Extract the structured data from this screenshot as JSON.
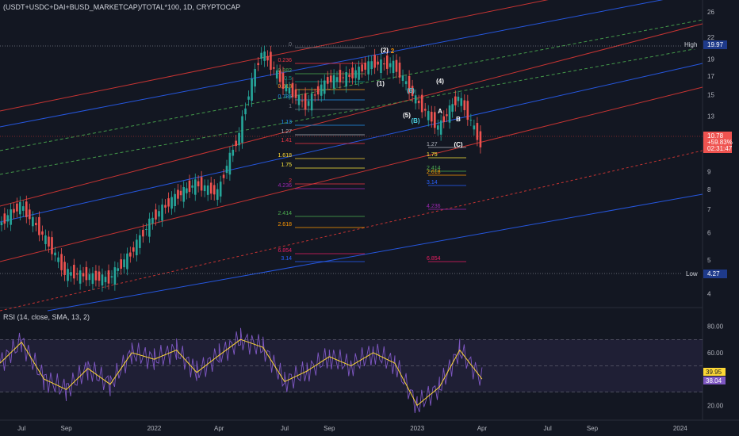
{
  "header": {
    "symbol_title": "(USDT+USDC+DAI+BUSD_MARKETCAP)/TOTAL*100, 1D, CRYPTOCAP"
  },
  "rsi_header": "RSI (14, close, SMA, 13, 2)",
  "price_axis": {
    "ticks": [
      "26",
      "22",
      "19",
      "17",
      "15",
      "13",
      "10",
      "9",
      "8",
      "7",
      "6",
      "5",
      "4"
    ],
    "high_label": "High",
    "high_value": "19.97",
    "low_label": "Low",
    "low_value": "4.27",
    "current_price": "10.78",
    "current_change": "+59.83%",
    "countdown": "02:31:47"
  },
  "rsi_axis": {
    "ticks": [
      "80.00",
      "60.00",
      "40.00",
      "20.00"
    ],
    "rsi_value": "39.95",
    "rsi_ma_value": "38.04"
  },
  "time_axis": [
    "Jul",
    "Sep",
    "2022",
    "Apr",
    "Jul",
    "Sep",
    "2023",
    "Apr",
    "Jul",
    "Sep",
    "2024"
  ],
  "fib_labels_primary": [
    "0",
    "0.236",
    "0.382",
    "0.5",
    "0.618",
    "0.786",
    "1",
    "1.13",
    "1.27",
    "1.41",
    "1.618",
    "1.75",
    "2",
    "2.414",
    "2.618",
    "3.14",
    "4.236",
    "6.854"
  ],
  "fib_labels_secondary": [
    "1.27",
    "1.75",
    "2.414",
    "2.618",
    "3.14",
    "4.236",
    "6.854"
  ],
  "wave_labels": [
    "(1)",
    "(2)",
    "2",
    "(4)",
    "(5)",
    "(6)",
    "(B)",
    "A",
    "B",
    "(C)"
  ],
  "colors": {
    "background": "#131722",
    "candle_up": "#26a69a",
    "candle_down": "#ef5350",
    "channel_red": "#e53935",
    "channel_blue": "#2962ff",
    "channel_green": "#4caf50",
    "rsi_line": "#7e57c2",
    "rsi_ma": "#fdd835",
    "rsi_band": "#7e57c2"
  },
  "chart_data": {
    "type": "candlestick",
    "x_start": "2021-06",
    "x_end": "2024-02",
    "ylabel": "",
    "y_scale": "log",
    "ylim": [
      3.8,
      27
    ],
    "price_series": [
      {
        "date": "2021-06",
        "value": 6.3
      },
      {
        "date": "2021-07",
        "value": 7.2
      },
      {
        "date": "2021-08",
        "value": 5.9
      },
      {
        "date": "2021-09",
        "value": 4.6
      },
      {
        "date": "2021-10",
        "value": 4.5
      },
      {
        "date": "2021-11",
        "value": 4.4
      },
      {
        "date": "2021-12",
        "value": 5.2
      },
      {
        "date": "2022-01",
        "value": 6.6
      },
      {
        "date": "2022-02",
        "value": 7.6
      },
      {
        "date": "2022-03",
        "value": 8.3
      },
      {
        "date": "2022-04",
        "value": 7.8
      },
      {
        "date": "2022-05",
        "value": 11.5
      },
      {
        "date": "2022-06",
        "value": 19.97
      },
      {
        "date": "2022-07",
        "value": 16.0
      },
      {
        "date": "2022-08",
        "value": 14.0
      },
      {
        "date": "2022-09",
        "value": 16.5
      },
      {
        "date": "2022-10",
        "value": 17.0
      },
      {
        "date": "2022-11",
        "value": 18.5
      },
      {
        "date": "2022-12",
        "value": 18.3
      },
      {
        "date": "2023-01",
        "value": 14.5
      },
      {
        "date": "2023-02",
        "value": 12.0
      },
      {
        "date": "2023-03",
        "value": 14.8
      },
      {
        "date": "2023-04",
        "value": 10.78
      }
    ],
    "rsi_series": [
      {
        "date": "2021-06",
        "value": 52
      },
      {
        "date": "2021-07",
        "value": 68
      },
      {
        "date": "2021-08",
        "value": 40
      },
      {
        "date": "2021-09",
        "value": 32
      },
      {
        "date": "2021-10",
        "value": 48
      },
      {
        "date": "2021-11",
        "value": 36
      },
      {
        "date": "2021-12",
        "value": 60
      },
      {
        "date": "2022-01",
        "value": 55
      },
      {
        "date": "2022-02",
        "value": 62
      },
      {
        "date": "2022-03",
        "value": 45
      },
      {
        "date": "2022-04",
        "value": 58
      },
      {
        "date": "2022-05",
        "value": 70
      },
      {
        "date": "2022-06",
        "value": 64
      },
      {
        "date": "2022-07",
        "value": 38
      },
      {
        "date": "2022-08",
        "value": 46
      },
      {
        "date": "2022-09",
        "value": 57
      },
      {
        "date": "2022-10",
        "value": 50
      },
      {
        "date": "2022-11",
        "value": 60
      },
      {
        "date": "2022-12",
        "value": 52
      },
      {
        "date": "2023-01",
        "value": 20
      },
      {
        "date": "2023-02",
        "value": 34
      },
      {
        "date": "2023-03",
        "value": 62
      },
      {
        "date": "2023-04",
        "value": 39.95
      }
    ],
    "rsi_levels": [
      70,
      50,
      30
    ],
    "rsi_ylim": [
      10,
      90
    ]
  }
}
